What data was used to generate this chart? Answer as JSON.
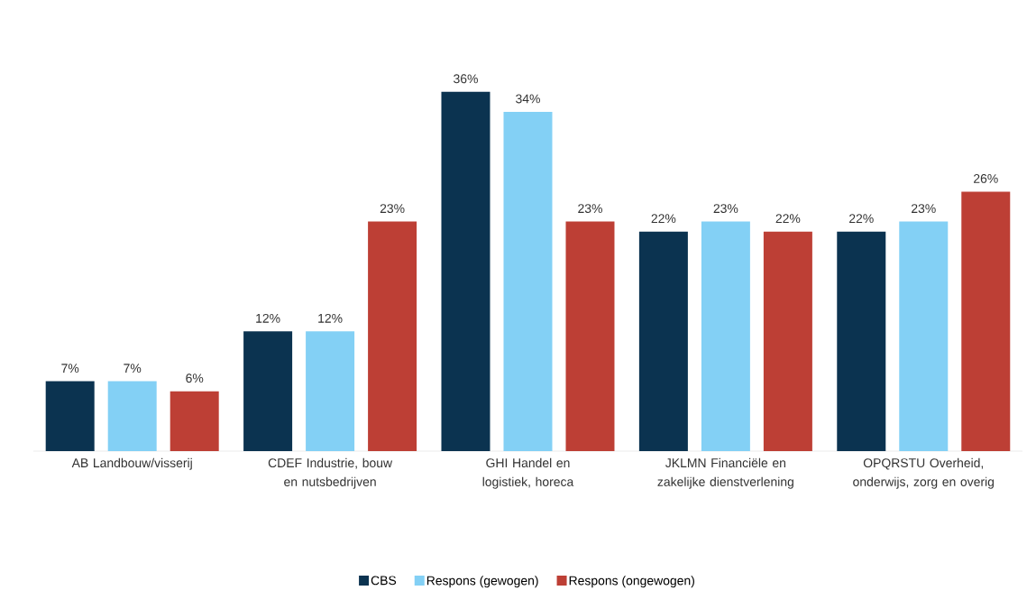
{
  "chart_data": {
    "type": "bar",
    "categories": [
      "AB Landbouw/visserij",
      "CDEF Industrie, bouw en nutsbedrijven",
      "GHI Handel en logistiek, horeca",
      "JKLMN Financiële en zakelijke dienstverlening",
      "OPQRSTU Overheid, onderwijs, zorg en overig"
    ],
    "series": [
      {
        "name": "CBS",
        "color": "#0b3350",
        "values": [
          7,
          12,
          36,
          22,
          22
        ],
        "value_labels": [
          "7%",
          "12%",
          "36%",
          "22%",
          "22%"
        ]
      },
      {
        "name": "Respons (gewogen)",
        "color": "#83d0f5",
        "values": [
          7,
          12,
          34,
          23,
          23
        ],
        "value_labels": [
          "7%",
          "12%",
          "34%",
          "23%",
          "23%"
        ]
      },
      {
        "name": "Respons (ongewogen)",
        "color": "#bd3f35",
        "values": [
          6,
          23,
          23,
          22,
          26
        ],
        "value_labels": [
          "6%",
          "23%",
          "23%",
          "22%",
          "26%"
        ]
      }
    ],
    "legend": "bottom"
  }
}
